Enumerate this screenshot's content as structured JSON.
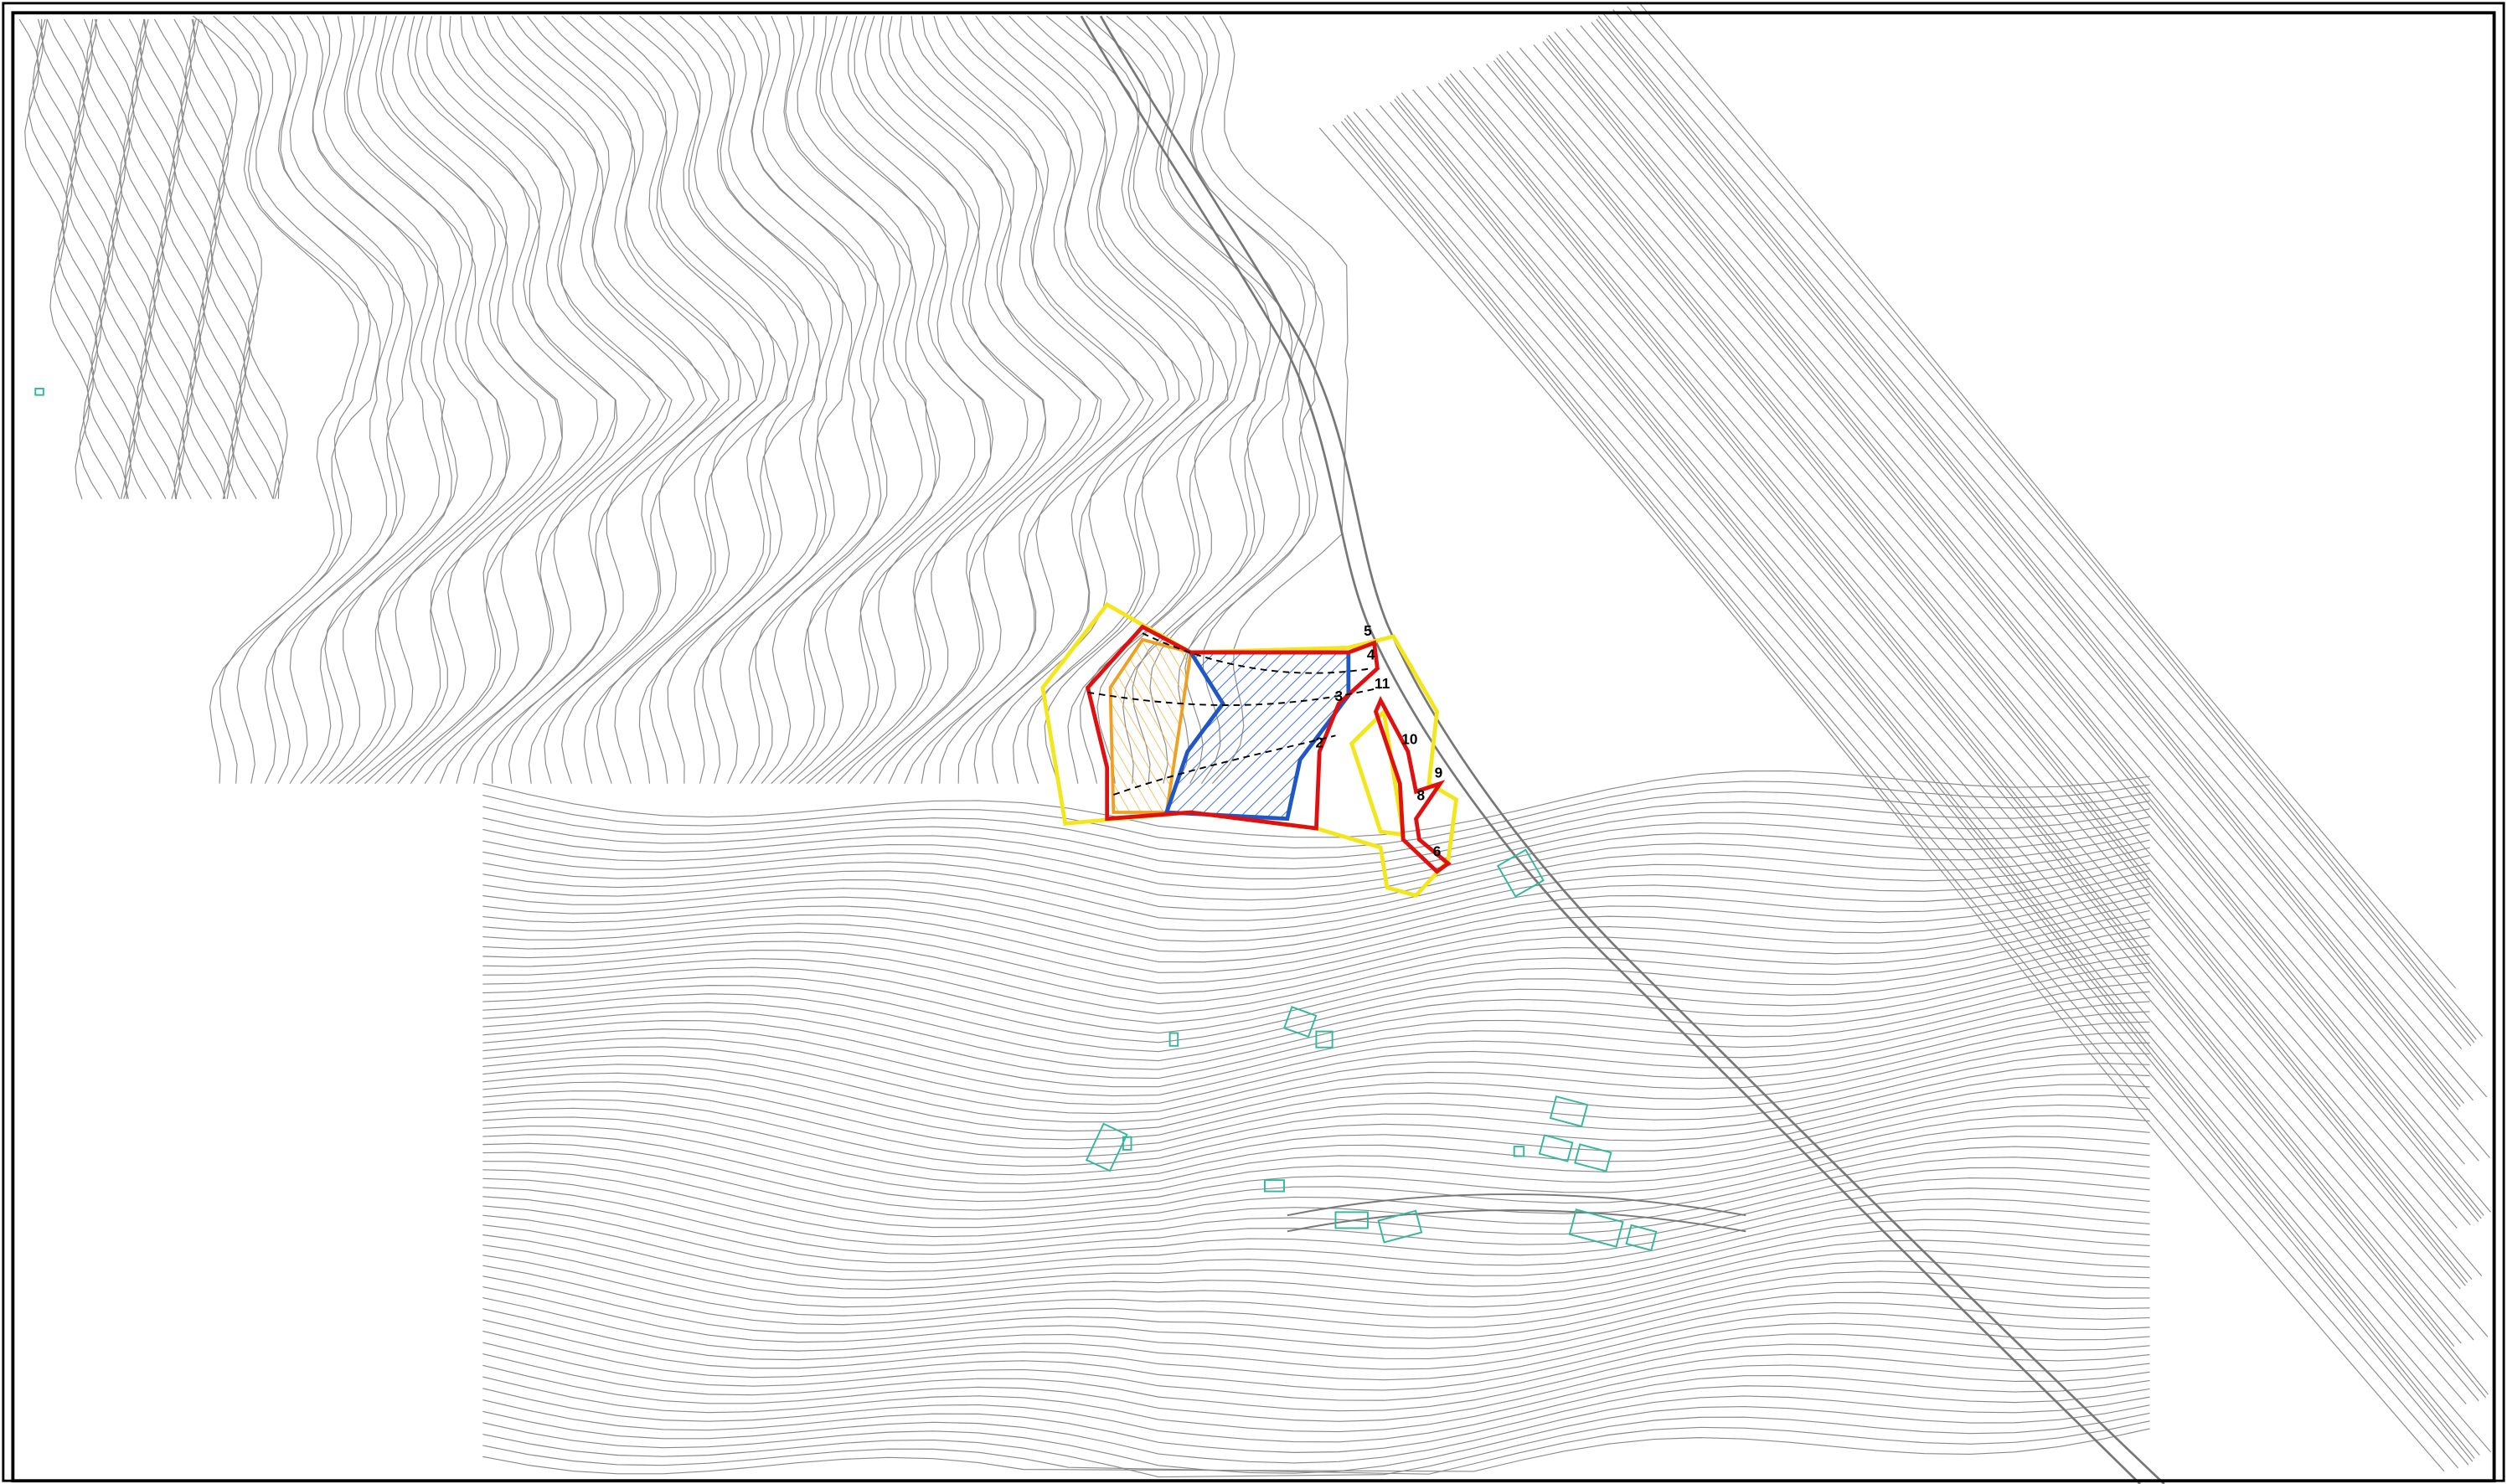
{
  "map": {
    "parcel_labels": [
      "5",
      "4",
      "11",
      "3",
      "2",
      "10",
      "9",
      "8",
      "6"
    ]
  }
}
